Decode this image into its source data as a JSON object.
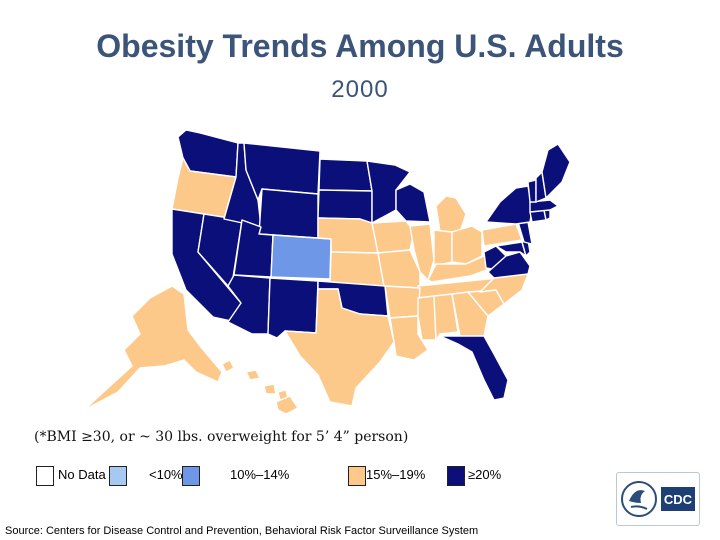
{
  "title": "Obesity Trends Among U.S. Adults",
  "year": "2000",
  "footnote": "(*BMI ≥30, or ~ 30 lbs. overweight for 5’ 4” person)",
  "legend": [
    {
      "label": "No Data",
      "color": "#ffffff"
    },
    {
      "label": "<10%",
      "color": "#a7c8f0"
    },
    {
      "label": "10%–14%",
      "color": "#6e97e8"
    },
    {
      "label": "15%–19%",
      "color": "#fcc98a"
    },
    {
      "label": "≥20%",
      "color": "#0b0f7a"
    }
  ],
  "colors": {
    "state_15_19": "#fcc98a",
    "state_20_plus": "#0b0f7a",
    "state_10_14": "#6e97e8",
    "border": "#ffffff",
    "text": "#3b5478"
  },
  "source": "Source: Centers for Disease Control and Prevention, Behavioral Risk Factor Surveillance System",
  "logo": {
    "text": "CDC"
  },
  "map_data": {
    "classes": {
      "10-14": [
        "CO"
      ],
      "15-19": [
        "OR",
        "NE",
        "KS",
        "IA",
        "MO",
        "IL",
        "IN",
        "OH",
        "MI",
        "KY",
        "TN",
        "AR",
        "LA",
        "MS",
        "AL",
        "GA",
        "SC",
        "NC",
        "TX",
        "AK",
        "HI",
        "PA"
      ],
      "20+": [
        "WA",
        "ID",
        "MT",
        "WY",
        "ND",
        "SD",
        "MN",
        "WI",
        "NV",
        "CA",
        "UT",
        "AZ",
        "NM",
        "OK",
        "FL",
        "WV",
        "VA",
        "MD",
        "DE",
        "NJ",
        "NY",
        "VT",
        "NH",
        "ME",
        "MA",
        "CT",
        "RI"
      ]
    }
  }
}
